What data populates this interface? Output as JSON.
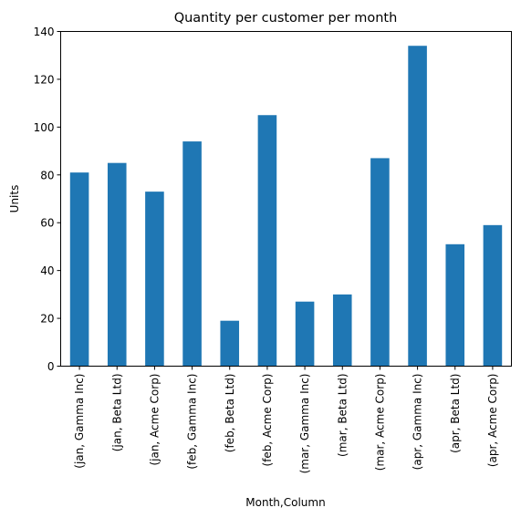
{
  "chart_data": {
    "type": "bar",
    "title": "Quantity per customer per month",
    "xlabel": "Month,Column",
    "ylabel": "Units",
    "categories": [
      "(jan, Gamma Inc)",
      "(jan, Beta Ltd)",
      "(jan, Acme Corp)",
      "(feb, Gamma Inc)",
      "(feb, Beta Ltd)",
      "(feb, Acme Corp)",
      "(mar, Gamma Inc)",
      "(mar, Beta Ltd)",
      "(mar, Acme Corp)",
      "(apr, Gamma Inc)",
      "(apr, Beta Ltd)",
      "(apr, Acme Corp)"
    ],
    "values": [
      81,
      85,
      73,
      94,
      19,
      105,
      27,
      30,
      87,
      134,
      51,
      59
    ],
    "ylim": [
      0,
      140
    ],
    "yticks": [
      0,
      20,
      40,
      60,
      80,
      100,
      120,
      140
    ],
    "grid": false,
    "legend": "none",
    "bar_color": "#1f77b4"
  }
}
